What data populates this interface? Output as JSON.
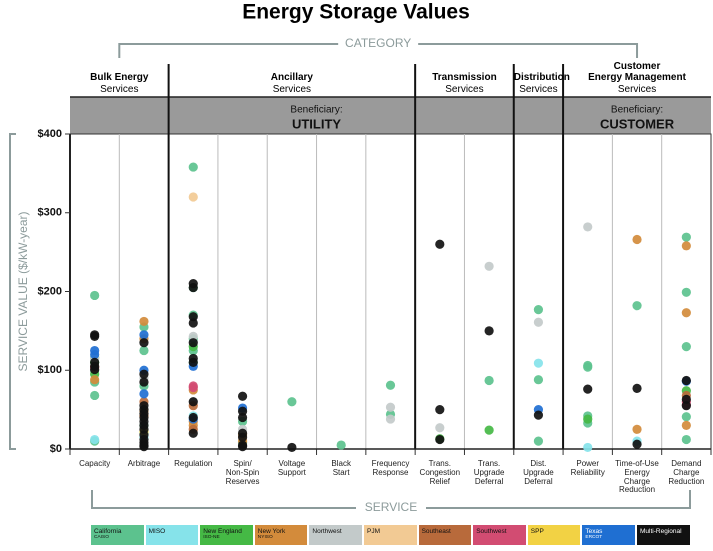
{
  "chart_data": {
    "type": "strip",
    "title": "Energy Storage Values",
    "category_axis_label": "CATEGORY",
    "x_axis_label": "SERVICE",
    "y_axis_label": "SERVICE VALUE ($/kW-year)",
    "ylim": [
      0,
      400
    ],
    "yticks": [
      {
        "value": 0,
        "label": "$0"
      },
      {
        "value": 100,
        "label": "$100"
      },
      {
        "value": 200,
        "label": "$200"
      },
      {
        "value": 300,
        "label": "$300"
      },
      {
        "value": 400,
        "label": "$400"
      }
    ],
    "beneficiaries": [
      {
        "label": "Beneficiary:",
        "name": "UTILITY",
        "groups": [
          {
            "title": "Bulk Energy",
            "subtitle": "Services",
            "categories": [
              "Capacity",
              "Arbitrage"
            ]
          },
          {
            "title": "Ancillary",
            "subtitle": "Services",
            "categories": [
              "Regulation",
              "Spin/\nNon-Spin\nReserves",
              "Voltage\nSupport",
              "Black\nStart",
              "Frequency\nResponse"
            ]
          },
          {
            "title": "Transmission",
            "subtitle": "Services",
            "categories": [
              "Trans.\nCongestion\nRelief",
              "Trans.\nUpgrade\nDeferral"
            ]
          },
          {
            "title": "Distribution",
            "subtitle": "Services",
            "categories": [
              "Dist.\nUpgrade\nDeferral"
            ]
          }
        ]
      },
      {
        "label": "Beneficiary:",
        "name": "CUSTOMER",
        "groups": [
          {
            "title": "Customer\nEnergy Management",
            "subtitle": "Services",
            "categories": [
              "Power\nReliability",
              "Time-of-Use\nEnergy\nCharge\nReduction",
              "Demand\nCharge\nReduction"
            ]
          }
        ]
      }
    ],
    "series": [
      {
        "name": "California",
        "sublabel": "CAISO",
        "color": "#5cc28e",
        "x": [
          "Capacity",
          "Capacity",
          "Capacity",
          "Capacity",
          "Capacity",
          "Capacity",
          "Arbitrage",
          "Arbitrage",
          "Arbitrage",
          "Arbitrage",
          "Arbitrage",
          "Regulation",
          "Regulation",
          "Regulation",
          "Regulation",
          "Regulation",
          "Regulation",
          "Spin/\nNon-Spin\nReserves",
          "Spin/\nNon-Spin\nReserves",
          "Voltage\nSupport",
          "Black\nStart",
          "Frequency\nResponse",
          "Frequency\nResponse",
          "Trans.\nUpgrade\nDeferral",
          "Dist.\nUpgrade\nDeferral",
          "Dist.\nUpgrade\nDeferral",
          "Dist.\nUpgrade\nDeferral",
          "Power\nReliability",
          "Power\nReliability",
          "Power\nReliability",
          "Power\nReliability",
          "Time-of-Use\nEnergy\nCharge\nReduction",
          "Demand\nCharge\nReduction",
          "Demand\nCharge\nReduction",
          "Demand\nCharge\nReduction",
          "Demand\nCharge\nReduction",
          "Demand\nCharge\nReduction"
        ],
        "values": [
          195,
          116,
          100,
          85,
          68,
          10,
          155,
          125,
          80,
          30,
          20,
          358,
          205,
          170,
          140,
          125,
          110,
          35,
          8,
          60,
          5,
          81,
          44,
          87,
          177,
          88,
          10,
          106,
          104,
          42,
          33,
          182,
          269,
          199,
          130,
          41,
          12
        ]
      },
      {
        "name": "MISO",
        "color": "#86e3ea",
        "x": [
          "Capacity",
          "Arbitrage",
          "Regulation",
          "Dist.\nUpgrade\nDeferral",
          "Power\nReliability",
          "Time-of-Use\nEnergy\nCharge\nReduction"
        ],
        "values": [
          12,
          15,
          42,
          109,
          2,
          10
        ]
      },
      {
        "name": "New England",
        "sublabel": "ISO-NE",
        "color": "#45b945",
        "x": [
          "Capacity",
          "Capacity",
          "Regulation",
          "Trans.\nCongestion\nRelief",
          "Trans.\nUpgrade\nDeferral",
          "Power\nReliability",
          "Demand\nCharge\nReduction"
        ],
        "values": [
          110,
          95,
          130,
          13,
          24,
          38,
          74
        ]
      },
      {
        "name": "New York",
        "sublabel": "NYISO",
        "color": "#d38b3b",
        "x": [
          "Capacity",
          "Capacity",
          "Arbitrage",
          "Arbitrage",
          "Arbitrage",
          "Arbitrage",
          "Regulation",
          "Regulation",
          "Regulation",
          "Spin/\nNon-Spin\nReserves",
          "Spin/\nNon-Spin\nReserves",
          "Time-of-Use\nEnergy\nCharge\nReduction",
          "Time-of-Use\nEnergy\nCharge\nReduction",
          "Demand\nCharge\nReduction",
          "Demand\nCharge\nReduction",
          "Demand\nCharge\nReduction"
        ],
        "values": [
          104,
          88,
          162,
          140,
          48,
          42,
          75,
          35,
          30,
          18,
          10,
          266,
          25,
          258,
          173,
          30
        ]
      },
      {
        "name": "Northwest",
        "color": "#c3caca",
        "x": [
          "Capacity",
          "Arbitrage",
          "Regulation",
          "Regulation",
          "Spin/\nNon-Spin\nReserves",
          "Frequency\nResponse",
          "Frequency\nResponse",
          "Trans.\nCongestion\nRelief",
          "Trans.\nUpgrade\nDeferral",
          "Dist.\nUpgrade\nDeferral",
          "Power\nReliability"
        ],
        "values": [
          115,
          90,
          143,
          60,
          25,
          53,
          38,
          27,
          232,
          161,
          282
        ]
      },
      {
        "name": "PJM",
        "color": "#f2ca94",
        "x": [
          "Regulation"
        ],
        "values": [
          320
        ]
      },
      {
        "name": "Southeast",
        "color": "#b86a3b",
        "x": [
          "Arbitrage",
          "Arbitrage",
          "Regulation",
          "Regulation",
          "Demand\nCharge\nReduction"
        ],
        "values": [
          60,
          42,
          55,
          25,
          68
        ]
      },
      {
        "name": "Southwest",
        "color": "#d24c72",
        "x": [
          "Capacity",
          "Regulation",
          "Regulation",
          "Demand\nCharge\nReduction",
          "Demand\nCharge\nReduction"
        ],
        "values": [
          103,
          80,
          78,
          60,
          56
        ]
      },
      {
        "name": "SPP",
        "color": "#f2d244",
        "x": [
          "Arbitrage"
        ],
        "values": [
          22
        ]
      },
      {
        "name": "Texas",
        "sublabel": "ERCOT",
        "color": "#1f6fd2",
        "x": [
          "Capacity",
          "Capacity",
          "Arbitrage",
          "Arbitrage",
          "Arbitrage",
          "Regulation",
          "Regulation",
          "Spin/\nNon-Spin\nReserves",
          "Dist.\nUpgrade\nDeferral",
          "Demand\nCharge\nReduction"
        ],
        "values": [
          125,
          120,
          145,
          100,
          70,
          105,
          38,
          52,
          50,
          86
        ]
      },
      {
        "name": "Multi-Regional",
        "color": "#111111",
        "x": [
          "Capacity",
          "Capacity",
          "Capacity",
          "Capacity",
          "Capacity",
          "Arbitrage",
          "Arbitrage",
          "Arbitrage",
          "Arbitrage",
          "Arbitrage",
          "Arbitrage",
          "Arbitrage",
          "Arbitrage",
          "Arbitrage",
          "Arbitrage",
          "Arbitrage",
          "Arbitrage",
          "Arbitrage",
          "Arbitrage",
          "Arbitrage",
          "Regulation",
          "Regulation",
          "Regulation",
          "Regulation",
          "Regulation",
          "Regulation",
          "Regulation",
          "Regulation",
          "Regulation",
          "Regulation",
          "Spin/\nNon-Spin\nReserves",
          "Spin/\nNon-Spin\nReserves",
          "Spin/\nNon-Spin\nReserves",
          "Spin/\nNon-Spin\nReserves",
          "Spin/\nNon-Spin\nReserves",
          "Spin/\nNon-Spin\nReserves",
          "Spin/\nNon-Spin\nReserves",
          "Voltage\nSupport",
          "Trans.\nCongestion\nRelief",
          "Trans.\nCongestion\nRelief",
          "Trans.\nCongestion\nRelief",
          "Trans.\nUpgrade\nDeferral",
          "Dist.\nUpgrade\nDeferral",
          "Power\nReliability",
          "Time-of-Use\nEnergy\nCharge\nReduction",
          "Time-of-Use\nEnergy\nCharge\nReduction",
          "Demand\nCharge\nReduction",
          "Demand\nCharge\nReduction",
          "Demand\nCharge\nReduction"
        ],
        "values": [
          145,
          143,
          110,
          105,
          101,
          135,
          95,
          85,
          55,
          50,
          45,
          40,
          35,
          30,
          25,
          18,
          12,
          8,
          5,
          3,
          210,
          205,
          168,
          160,
          135,
          115,
          110,
          60,
          40,
          20,
          67,
          48,
          40,
          20,
          15,
          5,
          3,
          2,
          260,
          50,
          12,
          150,
          43,
          76,
          77,
          6,
          87,
          63,
          55
        ]
      }
    ]
  }
}
